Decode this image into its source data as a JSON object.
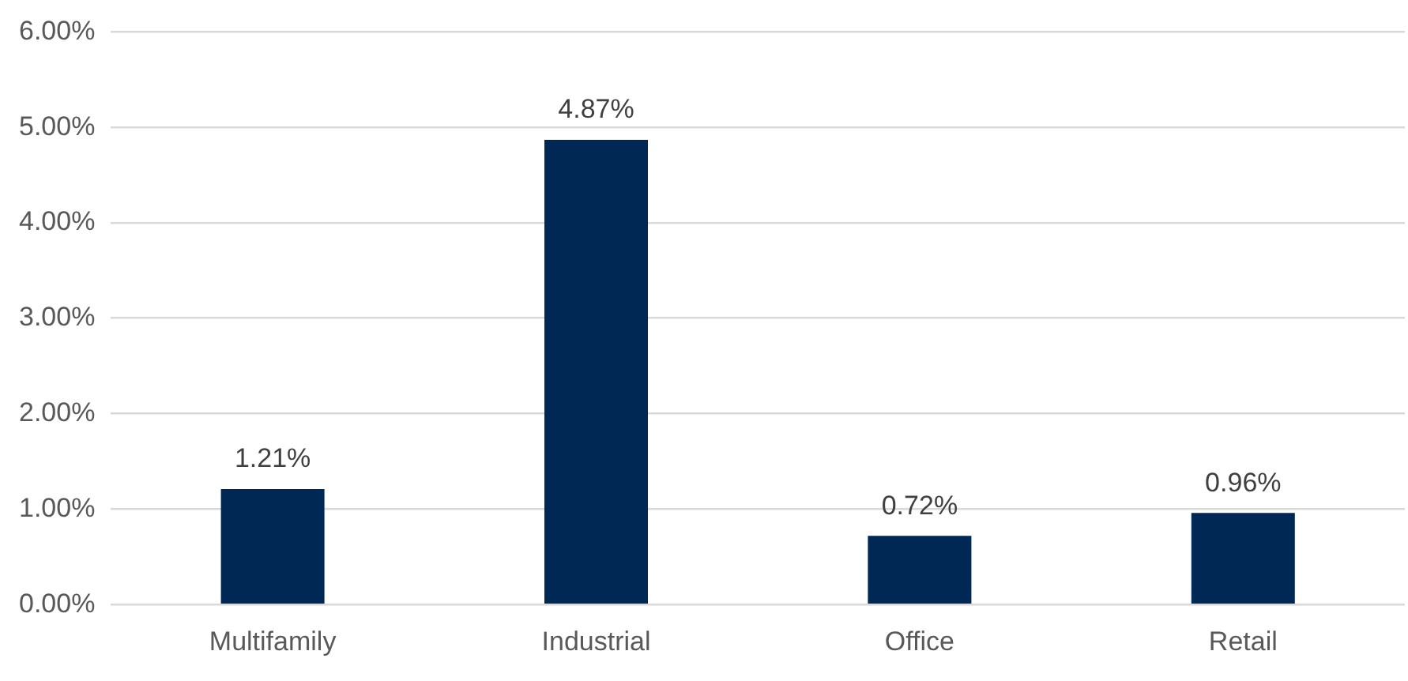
{
  "chart_data": {
    "type": "bar",
    "categories": [
      "Multifamily",
      "Industrial",
      "Office",
      "Retail"
    ],
    "values": [
      1.21,
      4.87,
      0.72,
      0.96
    ],
    "color": "#002855",
    "value_labels": [
      "1.21%",
      "4.87%",
      "0.72%",
      "0.96%"
    ],
    "ylim": [
      0,
      6
    ],
    "yticks": [
      {
        "value": 0,
        "label": "0.00%"
      },
      {
        "value": 1,
        "label": "1.00%"
      },
      {
        "value": 2,
        "label": "2.00%"
      },
      {
        "value": 3,
        "label": "3.00%"
      },
      {
        "value": 4,
        "label": "4.00%"
      },
      {
        "value": 5,
        "label": "5.00%"
      },
      {
        "value": 6,
        "label": "6.00%"
      }
    ],
    "grid": "y",
    "legend": false
  }
}
